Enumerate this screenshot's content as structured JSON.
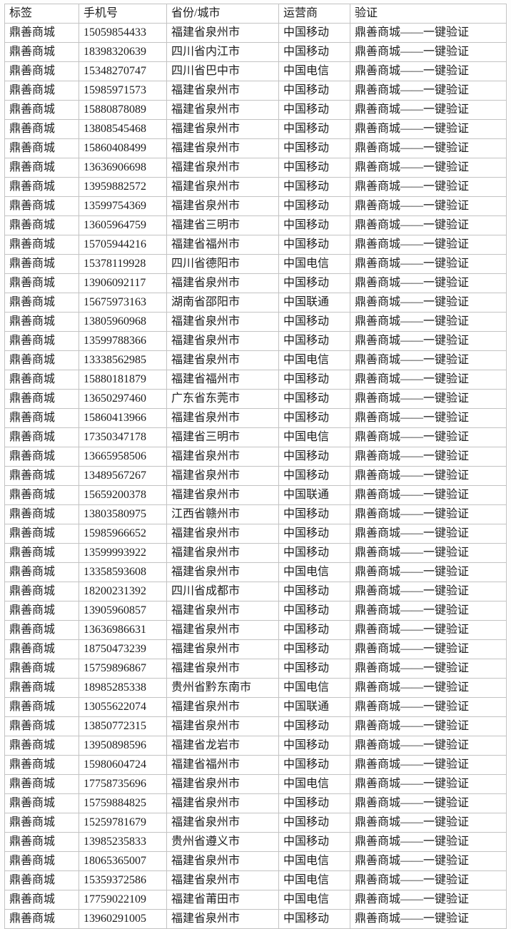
{
  "table": {
    "columns": [
      "标签",
      "手机号",
      "省份/城市",
      "运营商",
      "验证"
    ],
    "column_keys": [
      "label",
      "phone",
      "region",
      "carrier",
      "verify"
    ],
    "rows": [
      [
        "鼎善商城",
        "15059854433",
        "福建省泉州市",
        "中国移动",
        "鼎善商城——一键验证"
      ],
      [
        "鼎善商城",
        "18398320639",
        "四川省内江市",
        "中国移动",
        "鼎善商城——一键验证"
      ],
      [
        "鼎善商城",
        "15348270747",
        "四川省巴中市",
        "中国电信",
        "鼎善商城——一键验证"
      ],
      [
        "鼎善商城",
        "15985971573",
        "福建省泉州市",
        "中国移动",
        "鼎善商城——一键验证"
      ],
      [
        "鼎善商城",
        "15880878089",
        "福建省泉州市",
        "中国移动",
        "鼎善商城——一键验证"
      ],
      [
        "鼎善商城",
        "13808545468",
        "福建省泉州市",
        "中国移动",
        "鼎善商城——一键验证"
      ],
      [
        "鼎善商城",
        "15860408499",
        "福建省泉州市",
        "中国移动",
        "鼎善商城——一键验证"
      ],
      [
        "鼎善商城",
        "13636906698",
        "福建省泉州市",
        "中国移动",
        "鼎善商城——一键验证"
      ],
      [
        "鼎善商城",
        "13959882572",
        "福建省泉州市",
        "中国移动",
        "鼎善商城——一键验证"
      ],
      [
        "鼎善商城",
        "13599754369",
        "福建省泉州市",
        "中国移动",
        "鼎善商城——一键验证"
      ],
      [
        "鼎善商城",
        "13605964759",
        "福建省三明市",
        "中国移动",
        "鼎善商城——一键验证"
      ],
      [
        "鼎善商城",
        "15705944216",
        "福建省福州市",
        "中国移动",
        "鼎善商城——一键验证"
      ],
      [
        "鼎善商城",
        "15378119928",
        "四川省德阳市",
        "中国电信",
        "鼎善商城——一键验证"
      ],
      [
        "鼎善商城",
        "13906092117",
        "福建省泉州市",
        "中国移动",
        "鼎善商城——一键验证"
      ],
      [
        "鼎善商城",
        "15675973163",
        "湖南省邵阳市",
        "中国联通",
        "鼎善商城——一键验证"
      ],
      [
        "鼎善商城",
        "13805960968",
        "福建省泉州市",
        "中国移动",
        "鼎善商城——一键验证"
      ],
      [
        "鼎善商城",
        "13599788366",
        "福建省泉州市",
        "中国移动",
        "鼎善商城——一键验证"
      ],
      [
        "鼎善商城",
        "13338562985",
        "福建省泉州市",
        "中国电信",
        "鼎善商城——一键验证"
      ],
      [
        "鼎善商城",
        "15880181879",
        "福建省福州市",
        "中国移动",
        "鼎善商城——一键验证"
      ],
      [
        "鼎善商城",
        "13650297460",
        "广东省东莞市",
        "中国移动",
        "鼎善商城——一键验证"
      ],
      [
        "鼎善商城",
        "15860413966",
        "福建省泉州市",
        "中国移动",
        "鼎善商城——一键验证"
      ],
      [
        "鼎善商城",
        "17350347178",
        "福建省三明市",
        "中国电信",
        "鼎善商城——一键验证"
      ],
      [
        "鼎善商城",
        "13665958506",
        "福建省泉州市",
        "中国移动",
        "鼎善商城——一键验证"
      ],
      [
        "鼎善商城",
        "13489567267",
        "福建省泉州市",
        "中国移动",
        "鼎善商城——一键验证"
      ],
      [
        "鼎善商城",
        "15659200378",
        "福建省泉州市",
        "中国联通",
        "鼎善商城——一键验证"
      ],
      [
        "鼎善商城",
        "13803580975",
        "江西省赣州市",
        "中国移动",
        "鼎善商城——一键验证"
      ],
      [
        "鼎善商城",
        "15985966652",
        "福建省泉州市",
        "中国移动",
        "鼎善商城——一键验证"
      ],
      [
        "鼎善商城",
        "13599993922",
        "福建省泉州市",
        "中国移动",
        "鼎善商城——一键验证"
      ],
      [
        "鼎善商城",
        "13358593608",
        "福建省泉州市",
        "中国电信",
        "鼎善商城——一键验证"
      ],
      [
        "鼎善商城",
        "18200231392",
        "四川省成都市",
        "中国移动",
        "鼎善商城——一键验证"
      ],
      [
        "鼎善商城",
        "13905960857",
        "福建省泉州市",
        "中国移动",
        "鼎善商城——一键验证"
      ],
      [
        "鼎善商城",
        "13636986631",
        "福建省泉州市",
        "中国移动",
        "鼎善商城——一键验证"
      ],
      [
        "鼎善商城",
        "18750473239",
        "福建省泉州市",
        "中国移动",
        "鼎善商城——一键验证"
      ],
      [
        "鼎善商城",
        "15759896867",
        "福建省泉州市",
        "中国移动",
        "鼎善商城——一键验证"
      ],
      [
        "鼎善商城",
        "18985285338",
        "贵州省黔东南市",
        "中国电信",
        "鼎善商城——一键验证"
      ],
      [
        "鼎善商城",
        "13055622074",
        "福建省泉州市",
        "中国联通",
        "鼎善商城——一键验证"
      ],
      [
        "鼎善商城",
        "13850772315",
        "福建省泉州市",
        "中国移动",
        "鼎善商城——一键验证"
      ],
      [
        "鼎善商城",
        "13950898596",
        "福建省龙岩市",
        "中国移动",
        "鼎善商城——一键验证"
      ],
      [
        "鼎善商城",
        "15980604724",
        "福建省福州市",
        "中国移动",
        "鼎善商城——一键验证"
      ],
      [
        "鼎善商城",
        "17758735696",
        "福建省泉州市",
        "中国电信",
        "鼎善商城——一键验证"
      ],
      [
        "鼎善商城",
        "15759884825",
        "福建省泉州市",
        "中国移动",
        "鼎善商城——一键验证"
      ],
      [
        "鼎善商城",
        "15259781679",
        "福建省泉州市",
        "中国移动",
        "鼎善商城——一键验证"
      ],
      [
        "鼎善商城",
        "13985235833",
        "贵州省遵义市",
        "中国移动",
        "鼎善商城——一键验证"
      ],
      [
        "鼎善商城",
        "18065365007",
        "福建省泉州市",
        "中国电信",
        "鼎善商城——一键验证"
      ],
      [
        "鼎善商城",
        "15359372586",
        "福建省泉州市",
        "中国电信",
        "鼎善商城——一键验证"
      ],
      [
        "鼎善商城",
        "17759022109",
        "福建省莆田市",
        "中国电信",
        "鼎善商城——一键验证"
      ],
      [
        "鼎善商城",
        "13960291005",
        "福建省泉州市",
        "中国移动",
        "鼎善商城——一键验证"
      ]
    ]
  },
  "colors": {
    "text": "#1c1c1c",
    "outer_border": "#8e8e8e",
    "cell_border": "#c3c3c3",
    "background": "#ffffff"
  }
}
